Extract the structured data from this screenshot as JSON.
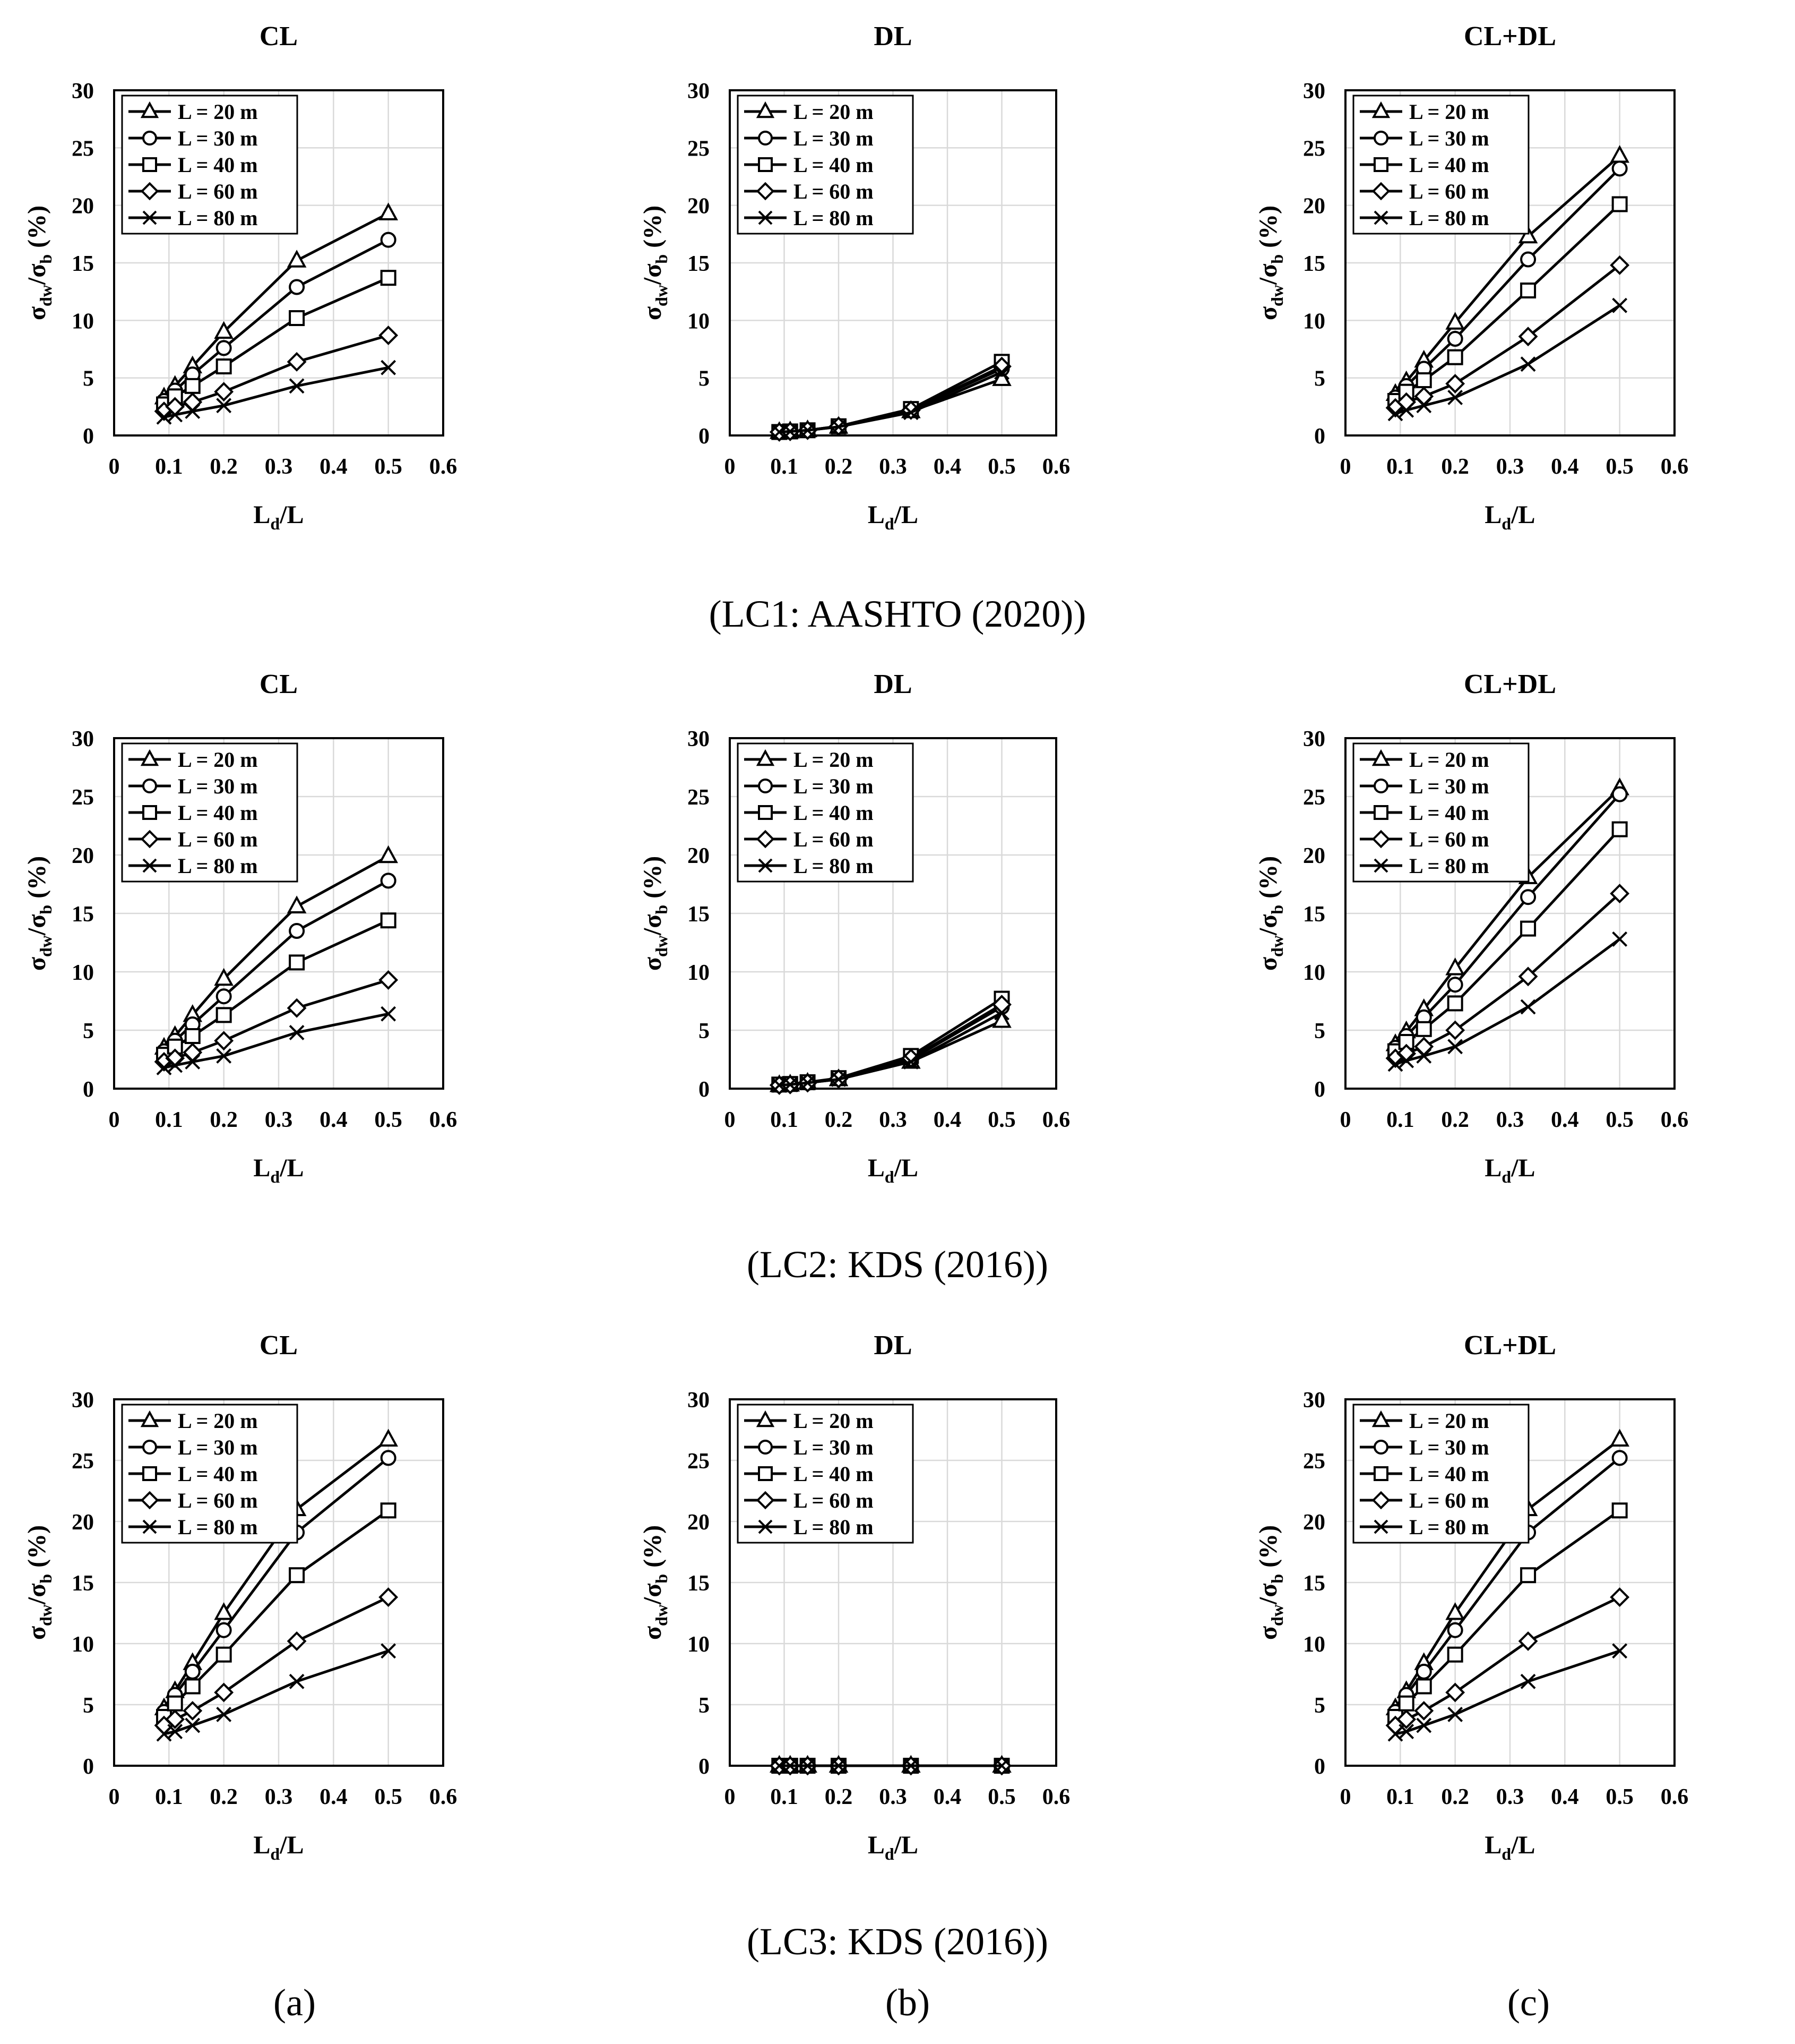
{
  "captions": [
    "(LC1: AASHTO (2020))",
    "(LC2: KDS (2016))",
    "(LC3: KDS (2016))"
  ],
  "sub_labels": [
    "(a)",
    "(b)",
    "(c)"
  ],
  "axis_text": {
    "y_main": "σ",
    "y_sub1": "dw",
    "y_mid": "/σ",
    "y_sub2": "b",
    "y_tail": " (%)",
    "x_main": "L",
    "x_sub": "d",
    "x_tail": "/L"
  },
  "colors": {
    "line": "#000000",
    "background": "#ffffff",
    "grid": "#d9d9d9"
  },
  "chart_data": [
    {
      "type": "line",
      "row": 0,
      "col": 0,
      "title": "CL",
      "xlabel": "Ld/L",
      "ylabel": "σdw/σb (%)",
      "xlim": [
        0,
        0.6
      ],
      "ylim": [
        0,
        30
      ],
      "grid": true,
      "legend": "top-left",
      "x": [
        0.091,
        0.111,
        0.143,
        0.2,
        0.333,
        0.5
      ],
      "series": [
        {
          "name": "L = 20 m",
          "marker": "triangle",
          "values": [
            3.3,
            4.3,
            6.0,
            9.0,
            15.2,
            19.3
          ]
        },
        {
          "name": "L = 30 m",
          "marker": "circle",
          "values": [
            3.0,
            3.9,
            5.3,
            7.6,
            12.9,
            17.0
          ]
        },
        {
          "name": "L = 40 m",
          "marker": "square",
          "values": [
            2.7,
            3.4,
            4.3,
            6.0,
            10.2,
            13.7
          ]
        },
        {
          "name": "L = 60 m",
          "marker": "diamond",
          "values": [
            2.1,
            2.5,
            2.9,
            3.8,
            6.4,
            8.7
          ]
        },
        {
          "name": "L = 80 m",
          "marker": "x",
          "values": [
            1.6,
            1.8,
            2.1,
            2.6,
            4.3,
            5.9
          ]
        }
      ]
    },
    {
      "type": "line",
      "row": 0,
      "col": 1,
      "title": "DL",
      "xlabel": "Ld/L",
      "ylabel": "σdw/σb (%)",
      "xlim": [
        0,
        0.6
      ],
      "ylim": [
        0,
        30
      ],
      "grid": true,
      "legend": "top-left",
      "x": [
        0.091,
        0.111,
        0.143,
        0.2,
        0.333,
        0.5
      ],
      "series": [
        {
          "name": "L = 20 m",
          "marker": "triangle",
          "values": [
            0.3,
            0.35,
            0.45,
            0.75,
            2.1,
            4.9
          ]
        },
        {
          "name": "L = 30 m",
          "marker": "circle",
          "values": [
            0.3,
            0.35,
            0.45,
            0.8,
            2.2,
            5.8
          ]
        },
        {
          "name": "L = 40 m",
          "marker": "square",
          "values": [
            0.3,
            0.35,
            0.45,
            0.8,
            2.3,
            6.4
          ]
        },
        {
          "name": "L = 60 m",
          "marker": "diamond",
          "values": [
            0.3,
            0.35,
            0.45,
            0.8,
            2.2,
            6.0
          ]
        },
        {
          "name": "L = 80 m",
          "marker": "x",
          "values": [
            0.3,
            0.35,
            0.45,
            0.75,
            2.0,
            5.5
          ]
        }
      ]
    },
    {
      "type": "line",
      "row": 0,
      "col": 2,
      "title": "CL+DL",
      "xlabel": "Ld/L",
      "ylabel": "σdw/σb (%)",
      "xlim": [
        0,
        0.6
      ],
      "ylim": [
        0,
        30
      ],
      "grid": true,
      "legend": "top-left",
      "x": [
        0.091,
        0.111,
        0.143,
        0.2,
        0.333,
        0.5
      ],
      "series": [
        {
          "name": "L = 20 m",
          "marker": "triangle",
          "values": [
            3.6,
            4.7,
            6.5,
            9.8,
            17.3,
            24.3
          ]
        },
        {
          "name": "L = 30 m",
          "marker": "circle",
          "values": [
            3.3,
            4.3,
            5.8,
            8.4,
            15.3,
            23.2
          ]
        },
        {
          "name": "L = 40 m",
          "marker": "square",
          "values": [
            3.0,
            3.8,
            4.8,
            6.8,
            12.6,
            20.1
          ]
        },
        {
          "name": "L = 60 m",
          "marker": "diamond",
          "values": [
            2.4,
            2.9,
            3.4,
            4.5,
            8.6,
            14.8
          ]
        },
        {
          "name": "L = 80 m",
          "marker": "x",
          "values": [
            1.9,
            2.2,
            2.6,
            3.3,
            6.2,
            11.3
          ]
        }
      ]
    },
    {
      "type": "line",
      "row": 1,
      "col": 0,
      "title": "CL",
      "xlabel": "Ld/L",
      "ylabel": "σdw/σb (%)",
      "xlim": [
        0,
        0.6
      ],
      "ylim": [
        0,
        30
      ],
      "grid": true,
      "legend": "top-left",
      "x": [
        0.091,
        0.111,
        0.143,
        0.2,
        0.333,
        0.5
      ],
      "series": [
        {
          "name": "L = 20 m",
          "marker": "triangle",
          "values": [
            3.5,
            4.5,
            6.3,
            9.4,
            15.6,
            19.9
          ]
        },
        {
          "name": "L = 30 m",
          "marker": "circle",
          "values": [
            3.2,
            4.1,
            5.5,
            7.9,
            13.5,
            17.8
          ]
        },
        {
          "name": "L = 40 m",
          "marker": "square",
          "values": [
            2.9,
            3.6,
            4.5,
            6.3,
            10.8,
            14.4
          ]
        },
        {
          "name": "L = 60 m",
          "marker": "diamond",
          "values": [
            2.3,
            2.6,
            3.1,
            4.1,
            6.9,
            9.3
          ]
        },
        {
          "name": "L = 80 m",
          "marker": "x",
          "values": [
            1.8,
            2.0,
            2.3,
            2.8,
            4.8,
            6.4
          ]
        }
      ]
    },
    {
      "type": "line",
      "row": 1,
      "col": 1,
      "title": "DL",
      "xlabel": "Ld/L",
      "ylabel": "σdw/σb (%)",
      "xlim": [
        0,
        0.6
      ],
      "ylim": [
        0,
        30
      ],
      "grid": true,
      "legend": "top-left",
      "x": [
        0.091,
        0.111,
        0.143,
        0.2,
        0.333,
        0.5
      ],
      "series": [
        {
          "name": "L = 20 m",
          "marker": "triangle",
          "values": [
            0.3,
            0.35,
            0.5,
            0.8,
            2.3,
            5.8
          ]
        },
        {
          "name": "L = 30 m",
          "marker": "circle",
          "values": [
            0.3,
            0.35,
            0.5,
            0.85,
            2.5,
            7.0
          ]
        },
        {
          "name": "L = 40 m",
          "marker": "square",
          "values": [
            0.35,
            0.4,
            0.55,
            0.9,
            2.8,
            7.7
          ]
        },
        {
          "name": "L = 60 m",
          "marker": "diamond",
          "values": [
            0.3,
            0.35,
            0.5,
            0.85,
            2.6,
            7.2
          ]
        },
        {
          "name": "L = 80 m",
          "marker": "x",
          "values": [
            0.3,
            0.35,
            0.5,
            0.8,
            2.3,
            6.5
          ]
        }
      ]
    },
    {
      "type": "line",
      "row": 1,
      "col": 2,
      "title": "CL+DL",
      "xlabel": "Ld/L",
      "ylabel": "σdw/σb (%)",
      "xlim": [
        0,
        0.6
      ],
      "ylim": [
        0,
        30
      ],
      "grid": true,
      "legend": "top-left",
      "x": [
        0.091,
        0.111,
        0.143,
        0.2,
        0.333,
        0.5
      ],
      "series": [
        {
          "name": "L = 20 m",
          "marker": "triangle",
          "values": [
            3.8,
            4.9,
            6.8,
            10.3,
            18.1,
            25.7
          ]
        },
        {
          "name": "L = 30 m",
          "marker": "circle",
          "values": [
            3.5,
            4.5,
            6.1,
            8.9,
            16.4,
            25.2
          ]
        },
        {
          "name": "L = 40 m",
          "marker": "square",
          "values": [
            3.2,
            4.0,
            5.1,
            7.3,
            13.7,
            22.2
          ]
        },
        {
          "name": "L = 60 m",
          "marker": "diamond",
          "values": [
            2.6,
            3.0,
            3.6,
            5.0,
            9.6,
            16.7
          ]
        },
        {
          "name": "L = 80 m",
          "marker": "x",
          "values": [
            2.1,
            2.4,
            2.8,
            3.6,
            7.0,
            12.8
          ]
        }
      ]
    },
    {
      "type": "line",
      "row": 2,
      "col": 0,
      "title": "CL",
      "xlabel": "Ld/L",
      "ylabel": "σdw/σb (%)",
      "xlim": [
        0,
        0.6
      ],
      "ylim": [
        0,
        30
      ],
      "grid": true,
      "legend": "top-left",
      "x": [
        0.091,
        0.111,
        0.143,
        0.2,
        0.333,
        0.5
      ],
      "series": [
        {
          "name": "L = 20 m",
          "marker": "triangle",
          "values": [
            4.7,
            6.1,
            8.4,
            12.5,
            21.0,
            26.7
          ]
        },
        {
          "name": "L = 30 m",
          "marker": "circle",
          "values": [
            4.4,
            5.8,
            7.7,
            11.1,
            19.1,
            25.2
          ]
        },
        {
          "name": "L = 40 m",
          "marker": "square",
          "values": [
            4.0,
            5.1,
            6.5,
            9.1,
            15.6,
            20.9
          ]
        },
        {
          "name": "L = 60 m",
          "marker": "diamond",
          "values": [
            3.3,
            3.8,
            4.5,
            6.0,
            10.2,
            13.8
          ]
        },
        {
          "name": "L = 80 m",
          "marker": "x",
          "values": [
            2.6,
            2.8,
            3.3,
            4.2,
            6.9,
            9.4
          ]
        }
      ]
    },
    {
      "type": "line",
      "row": 2,
      "col": 1,
      "title": "DL",
      "xlabel": "Ld/L",
      "ylabel": "σdw/σb (%)",
      "xlim": [
        0,
        0.6
      ],
      "ylim": [
        0,
        30
      ],
      "grid": true,
      "legend": "top-left",
      "x": [
        0.091,
        0.111,
        0.143,
        0.2,
        0.333,
        0.5
      ],
      "series": [
        {
          "name": "L = 20 m",
          "marker": "triangle",
          "values": [
            0,
            0,
            0,
            0,
            0,
            0
          ]
        },
        {
          "name": "L = 30 m",
          "marker": "circle",
          "values": [
            0,
            0,
            0,
            0,
            0,
            0
          ]
        },
        {
          "name": "L = 40 m",
          "marker": "square",
          "values": [
            0,
            0,
            0,
            0,
            0,
            0
          ]
        },
        {
          "name": "L = 60 m",
          "marker": "diamond",
          "values": [
            0,
            0,
            0,
            0,
            0,
            0
          ]
        },
        {
          "name": "L = 80 m",
          "marker": "x",
          "values": [
            0,
            0,
            0,
            0,
            0,
            0
          ]
        }
      ]
    },
    {
      "type": "line",
      "row": 2,
      "col": 2,
      "title": "CL+DL",
      "xlabel": "Ld/L",
      "ylabel": "σdw/σb (%)",
      "xlim": [
        0,
        0.6
      ],
      "ylim": [
        0,
        30
      ],
      "grid": true,
      "legend": "top-left",
      "x": [
        0.091,
        0.111,
        0.143,
        0.2,
        0.333,
        0.5
      ],
      "series": [
        {
          "name": "L = 20 m",
          "marker": "triangle",
          "values": [
            4.7,
            6.1,
            8.4,
            12.5,
            21.0,
            26.7
          ]
        },
        {
          "name": "L = 30 m",
          "marker": "circle",
          "values": [
            4.4,
            5.8,
            7.7,
            11.1,
            19.1,
            25.2
          ]
        },
        {
          "name": "L = 40 m",
          "marker": "square",
          "values": [
            4.0,
            5.1,
            6.5,
            9.1,
            15.6,
            20.9
          ]
        },
        {
          "name": "L = 60 m",
          "marker": "diamond",
          "values": [
            3.3,
            3.8,
            4.5,
            6.0,
            10.2,
            13.8
          ]
        },
        {
          "name": "L = 80 m",
          "marker": "x",
          "values": [
            2.6,
            2.8,
            3.3,
            4.2,
            6.9,
            9.4
          ]
        }
      ]
    }
  ]
}
